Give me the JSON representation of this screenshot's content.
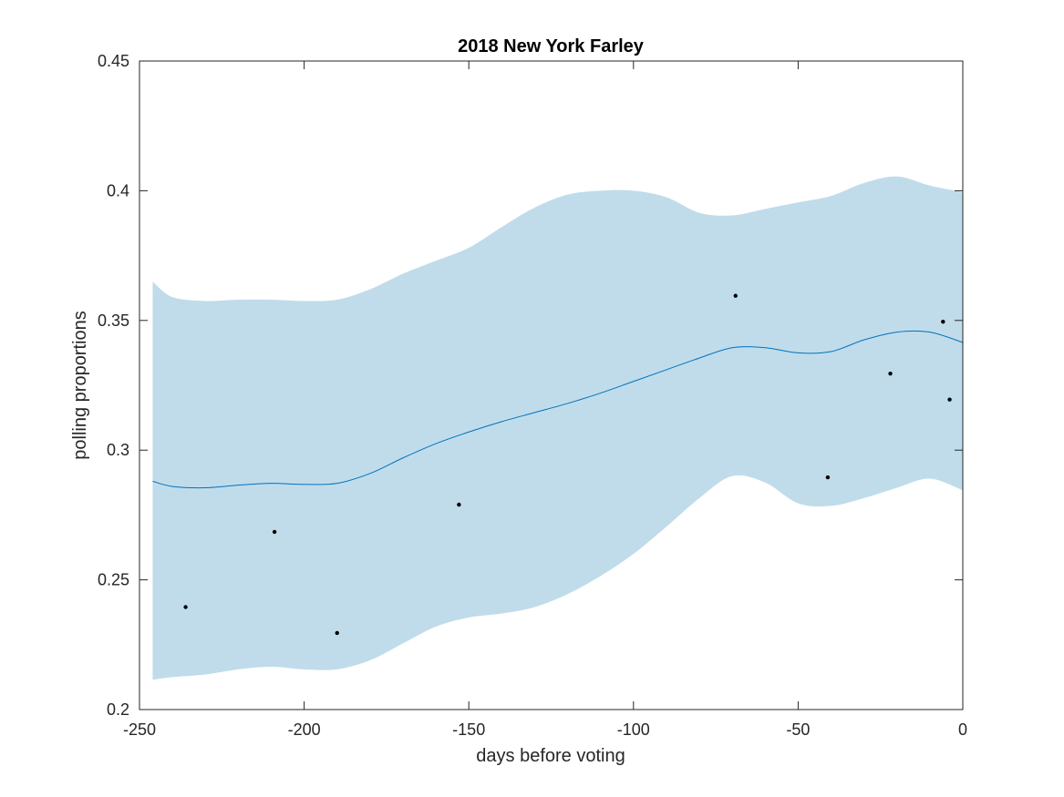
{
  "chart_data": {
    "type": "line",
    "title": "2018 New York Farley",
    "xlabel": "days before voting",
    "ylabel": "polling proportions",
    "xlim": [
      -250,
      0
    ],
    "ylim": [
      0.2,
      0.45
    ],
    "xticks": [
      -250,
      -200,
      -150,
      -100,
      -50,
      0
    ],
    "xtick_labels": [
      "-250",
      "-200",
      "-150",
      "-100",
      "-50",
      "0"
    ],
    "yticks": [
      0.2,
      0.25,
      0.3,
      0.35,
      0.4,
      0.45
    ],
    "ytick_labels": [
      "0.2",
      "0.25",
      "0.3",
      "0.35",
      "0.4",
      "0.45"
    ],
    "grid": false,
    "colors": {
      "band": "#c0dcea",
      "line": "#0072bd",
      "points": "#000000",
      "axes": "#262626"
    },
    "mean": {
      "x": [
        -246,
        -240,
        -230,
        -220,
        -210,
        -200,
        -190,
        -180,
        -170,
        -160,
        -150,
        -140,
        -130,
        -120,
        -110,
        -100,
        -90,
        -80,
        -70,
        -60,
        -50,
        -40,
        -30,
        -20,
        -10,
        0
      ],
      "y": [
        0.288,
        0.286,
        0.2855,
        0.2865,
        0.2872,
        0.2868,
        0.2872,
        0.291,
        0.297,
        0.3025,
        0.307,
        0.311,
        0.3145,
        0.318,
        0.322,
        0.3265,
        0.331,
        0.3355,
        0.3395,
        0.3395,
        0.3375,
        0.338,
        0.3425,
        0.3455,
        0.3455,
        0.3415
      ]
    },
    "band": {
      "x": [
        -246,
        -240,
        -230,
        -220,
        -210,
        -200,
        -190,
        -180,
        -170,
        -160,
        -150,
        -140,
        -130,
        -120,
        -110,
        -100,
        -90,
        -80,
        -70,
        -60,
        -50,
        -40,
        -30,
        -20,
        -10,
        0
      ],
      "upper": [
        0.365,
        0.359,
        0.3575,
        0.358,
        0.358,
        0.3575,
        0.358,
        0.362,
        0.368,
        0.373,
        0.378,
        0.386,
        0.3935,
        0.3985,
        0.4,
        0.4,
        0.3975,
        0.3915,
        0.3905,
        0.393,
        0.3955,
        0.398,
        0.403,
        0.4055,
        0.402,
        0.3995
      ],
      "lower": [
        0.2115,
        0.2125,
        0.2135,
        0.2155,
        0.2165,
        0.2155,
        0.2155,
        0.219,
        0.2255,
        0.232,
        0.2355,
        0.237,
        0.2395,
        0.2445,
        0.2515,
        0.26,
        0.2705,
        0.2815,
        0.29,
        0.2875,
        0.2795,
        0.2785,
        0.2815,
        0.2855,
        0.289,
        0.2845
      ]
    },
    "points": {
      "x": [
        -236,
        -209,
        -190,
        -153,
        -69,
        -41,
        -22,
        -6,
        -4
      ],
      "y": [
        0.2395,
        0.2685,
        0.2295,
        0.279,
        0.3595,
        0.2895,
        0.3295,
        0.3495,
        0.3195
      ]
    }
  }
}
